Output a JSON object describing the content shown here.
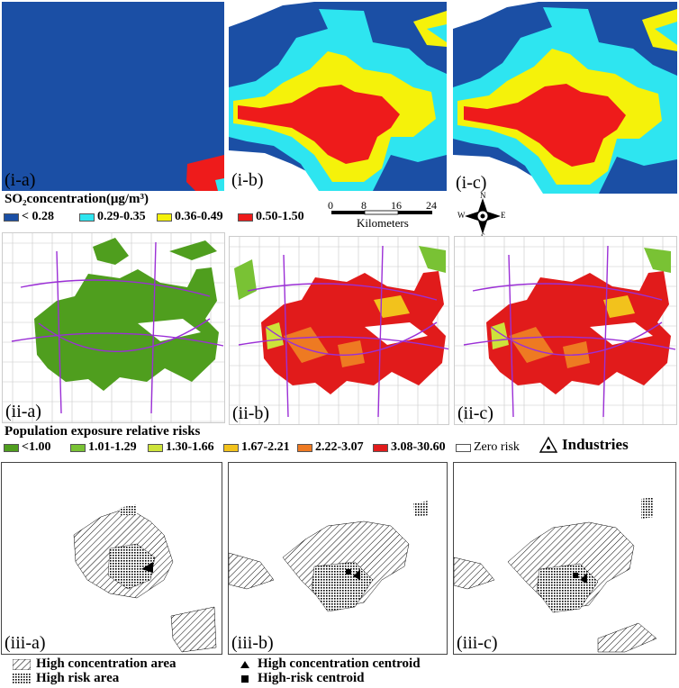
{
  "row1": {
    "panel_labels": [
      "(i-a)",
      "(i-b)",
      "(i-c)"
    ],
    "legend_title": "SO₂concentration(μg/m³)",
    "legend_items": [
      {
        "label": "< 0.28",
        "color": "#1b4fa5"
      },
      {
        "label": "0.29-0.35",
        "color": "#2ee5f0"
      },
      {
        "label": "0.36-0.49",
        "color": "#f5f20a"
      },
      {
        "label": "0.50-1.50",
        "color": "#ee1b1b"
      }
    ],
    "scale_ticks": [
      "0",
      "8",
      "16",
      "24"
    ],
    "scale_unit": "Kilometers",
    "compass": {
      "n": "N",
      "s": "S",
      "e": "E",
      "w": "W"
    }
  },
  "row2": {
    "panel_labels": [
      "(ii-a)",
      "(ii-b)",
      "(ii-c)"
    ],
    "legend_title": "Population exposure relative risks",
    "legend_items": [
      {
        "label": "<1.00",
        "color": "#4f9e1e"
      },
      {
        "label": "1.01-1.29",
        "color": "#79c234"
      },
      {
        "label": "1.30-1.66",
        "color": "#cde33a"
      },
      {
        "label": "1.67-2.21",
        "color": "#f2c21c"
      },
      {
        "label": "2.22-3.07",
        "color": "#ee7a22"
      },
      {
        "label": "3.08-30.60",
        "color": "#e11b1b"
      },
      {
        "label": "Zero risk",
        "color": "#ffffff"
      }
    ],
    "industries_label": "Industries"
  },
  "row3": {
    "panel_labels": [
      "(iii-a)",
      "(iii-b)",
      "(iii-c)"
    ],
    "legend": {
      "high_conc_area": "High concentration area",
      "high_risk_area": "High risk area",
      "high_conc_centroid": "High concentration centroid",
      "high_risk_centroid": "High-risk centroid"
    }
  }
}
